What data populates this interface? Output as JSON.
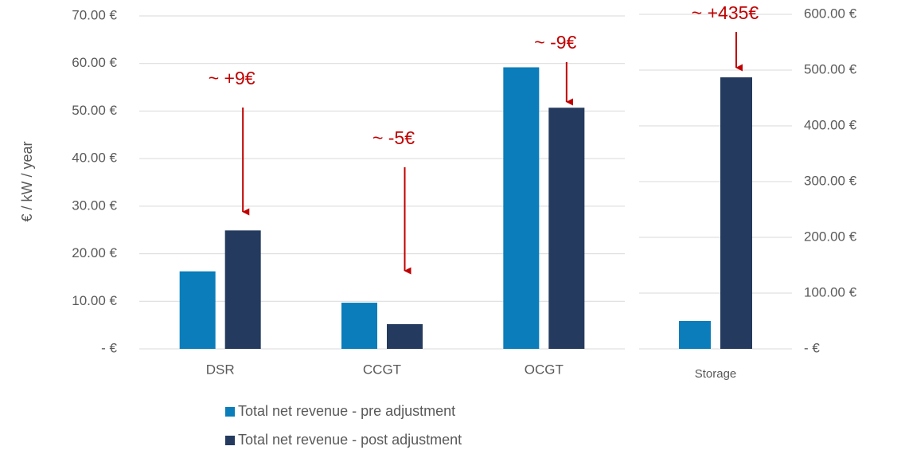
{
  "chart_data": [
    {
      "type": "bar",
      "y_label": "€ / kW / year",
      "categories": [
        "DSR",
        "CCGT",
        "OCGT"
      ],
      "series": [
        {
          "name": "Total net revenue - pre adjustment",
          "color": "#0a7dba",
          "values": [
            16.3,
            9.7,
            59.2
          ]
        },
        {
          "name": "Total net revenue - post adjustment",
          "color": "#243a5e",
          "values": [
            24.9,
            5.2,
            50.7
          ]
        }
      ],
      "ylim": [
        0,
        70
      ],
      "yticks": [
        {
          "value": 0,
          "label": "-   €"
        },
        {
          "value": 10,
          "label": "10.00 €"
        },
        {
          "value": 20,
          "label": "20.00 €"
        },
        {
          "value": 30,
          "label": "30.00 €"
        },
        {
          "value": 40,
          "label": "40.00 €"
        },
        {
          "value": 50,
          "label": "50.00 €"
        },
        {
          "value": 60,
          "label": "60.00 €"
        },
        {
          "value": 70,
          "label": "70.00 €"
        }
      ],
      "annotations": [
        "~ +9€",
        "~ -5€",
        "~ -9€"
      ],
      "annotation_color": "#c00000",
      "grid": true
    },
    {
      "type": "bar",
      "categories": [
        "Storage"
      ],
      "series": [
        {
          "color": "#0a7dba",
          "values": [
            50
          ]
        },
        {
          "color": "#243a5e",
          "values": [
            487
          ]
        }
      ],
      "ylim": [
        0,
        600
      ],
      "yticks": [
        {
          "value": 0,
          "label": "-   €"
        },
        {
          "value": 100,
          "label": "100.00 €"
        },
        {
          "value": 200,
          "label": "200.00 €"
        },
        {
          "value": 300,
          "label": "300.00 €"
        },
        {
          "value": 400,
          "label": "400.00 €"
        },
        {
          "value": 500,
          "label": "500.00 €"
        },
        {
          "value": 600,
          "label": "600.00 €"
        }
      ],
      "annotations": [
        "~ +435€"
      ],
      "annotation_color": "#c00000",
      "grid": true
    }
  ]
}
